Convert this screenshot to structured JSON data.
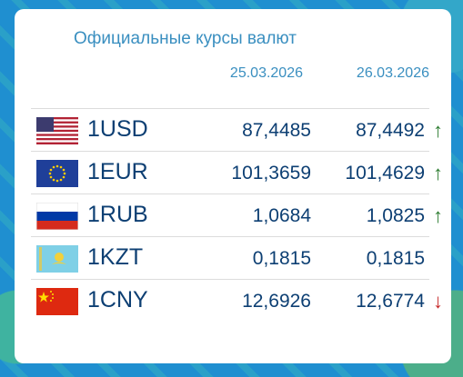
{
  "title": "Официальные курсы валют",
  "dates": [
    "25.03.2026",
    "26.03.2026"
  ],
  "rates": [
    {
      "code": "1USD",
      "flag": "us-flag-icon",
      "v1": "87,4485",
      "v2": "87,4492",
      "arrow": "↑",
      "trend": "up"
    },
    {
      "code": "1EUR",
      "flag": "eu-flag-icon",
      "v1": "101,3659",
      "v2": "101,4629",
      "arrow": "↑",
      "trend": "up"
    },
    {
      "code": "1RUB",
      "flag": "ru-flag-icon",
      "v1": "1,0684",
      "v2": "1,0825",
      "arrow": "↑",
      "trend": "up"
    },
    {
      "code": "1KZT",
      "flag": "kz-flag-icon",
      "v1": "0,1815",
      "v2": "0,1815",
      "arrow": "",
      "trend": "none"
    },
    {
      "code": "1CNY",
      "flag": "cn-flag-icon",
      "v1": "12,6926",
      "v2": "12,6774",
      "arrow": "↓",
      "trend": "down"
    }
  ],
  "colors": {
    "up": "#2e7d32",
    "down": "#c62828",
    "text": "#0d3f73",
    "accent": "#3a8fc0"
  }
}
